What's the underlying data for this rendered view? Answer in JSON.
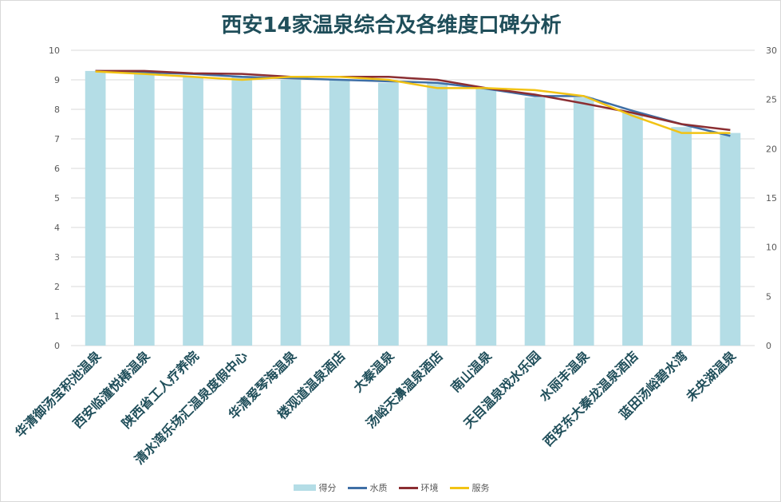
{
  "colors": {
    "bar": "#b4dde6",
    "water": "#3f6fa6",
    "environment": "#8b2e32",
    "service": "#f2c314",
    "grid": "#d9d9d9",
    "title": "#1f4e5a"
  },
  "chart_data": {
    "type": "bar",
    "title": "西安14家温泉综合及各维度口碑分析",
    "categories": [
      "华清御汤宝积池温泉",
      "西安临潼悦椿温泉",
      "陕西省工人疗养院",
      "清水湾乐场汇温泉度假中心",
      "华清爱琴海温泉",
      "楼观道温泉酒店",
      "大秦温泉",
      "汤峪天濞温泉酒店",
      "南山温泉",
      "天目温泉戏水乐园",
      "水丽丰温泉",
      "西安东大秦龙温泉酒店",
      "蓝田汤峪碧水湾",
      "未央湖温泉"
    ],
    "ylim": [
      0,
      10
    ],
    "yticks": [
      0,
      1,
      2,
      3,
      4,
      5,
      6,
      7,
      8,
      9,
      10
    ],
    "y2lim": [
      0,
      30
    ],
    "y2ticks": [
      0,
      5,
      10,
      15,
      20,
      25,
      30
    ],
    "series": [
      {
        "name": "得分",
        "kind": "bar",
        "axis": "left",
        "color_key": "bar",
        "values": [
          9.3,
          9.2,
          9.1,
          9.1,
          9.0,
          9.0,
          8.9,
          8.9,
          8.7,
          8.4,
          8.4,
          7.9,
          7.4,
          7.2
        ]
      },
      {
        "name": "水质",
        "kind": "line",
        "axis": "left",
        "color_key": "water",
        "values": [
          9.3,
          9.25,
          9.2,
          9.1,
          9.05,
          9.0,
          8.95,
          8.9,
          8.7,
          8.45,
          8.45,
          7.95,
          7.5,
          7.1
        ]
      },
      {
        "name": "环境",
        "kind": "line",
        "axis": "left",
        "color_key": "environment",
        "values": [
          9.3,
          9.3,
          9.22,
          9.2,
          9.1,
          9.1,
          9.1,
          9.0,
          8.72,
          8.5,
          8.2,
          7.88,
          7.5,
          7.3
        ]
      },
      {
        "name": "服务",
        "kind": "line",
        "axis": "left",
        "color_key": "service",
        "values": [
          9.28,
          9.2,
          9.1,
          9.0,
          9.1,
          9.1,
          9.0,
          8.72,
          8.72,
          8.65,
          8.45,
          7.78,
          7.2,
          7.2
        ]
      }
    ]
  }
}
